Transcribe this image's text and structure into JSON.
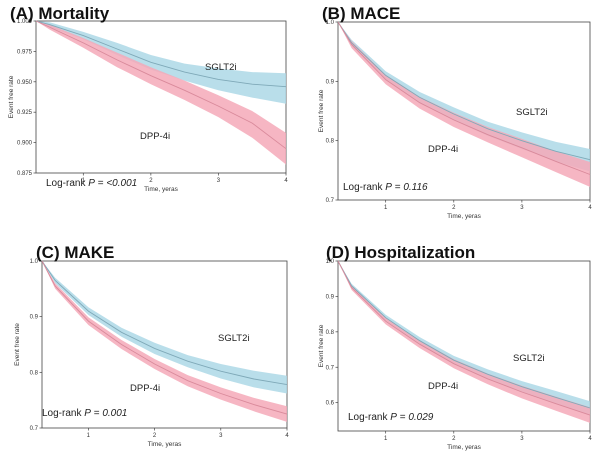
{
  "chart_data": [
    {
      "type": "line",
      "title": "(A) Mortality",
      "xlabel": "Time, yeras",
      "ylabel": "Event free rate",
      "xlim": [
        0.3,
        4.0
      ],
      "ylim": [
        0.875,
        1.0
      ],
      "xticks": [
        "1",
        "2",
        "3",
        "4"
      ],
      "yticks": [
        "0.875",
        "0.900",
        "0.925",
        "0.950",
        "0.975",
        "1.000"
      ],
      "pvalue_prefix": "Log-rank ",
      "pvalue_p": "P",
      "pvalue_rest": " = ",
      "pvalue_value": "<0.001",
      "legend": "none",
      "grid": false,
      "series": [
        {
          "name": "SGLT2i",
          "color": "#add8e6",
          "x": [
            0.3,
            0.5,
            1.0,
            1.5,
            2.0,
            2.5,
            3.0,
            3.5,
            4.0
          ],
          "y": [
            1.0,
            0.997,
            0.988,
            0.977,
            0.966,
            0.958,
            0.952,
            0.948,
            0.946
          ],
          "lower": [
            1.0,
            0.995,
            0.985,
            0.972,
            0.96,
            0.951,
            0.943,
            0.937,
            0.932
          ],
          "upper": [
            1.0,
            0.999,
            0.991,
            0.982,
            0.972,
            0.965,
            0.961,
            0.958,
            0.957
          ]
        },
        {
          "name": "DPP-4i",
          "color": "#f4a9b8",
          "x": [
            0.3,
            0.5,
            1.0,
            1.5,
            2.0,
            2.5,
            3.0,
            3.5,
            4.0
          ],
          "y": [
            1.0,
            0.995,
            0.982,
            0.968,
            0.955,
            0.943,
            0.93,
            0.916,
            0.895
          ],
          "lower": [
            1.0,
            0.993,
            0.978,
            0.962,
            0.948,
            0.935,
            0.921,
            0.904,
            0.882
          ],
          "upper": [
            1.0,
            0.997,
            0.986,
            0.974,
            0.962,
            0.951,
            0.939,
            0.926,
            0.908
          ]
        }
      ]
    },
    {
      "type": "line",
      "title": "(B) MACE",
      "xlabel": "Time, yeras",
      "ylabel": "Event free rate",
      "xlim": [
        0.3,
        4.0
      ],
      "ylim": [
        0.7,
        1.0
      ],
      "xticks": [
        "1",
        "2",
        "3",
        "4"
      ],
      "yticks": [
        "0.7",
        "0.8",
        "0.9",
        "1.0"
      ],
      "pvalue_prefix": "Log-rank ",
      "pvalue_p": "P",
      "pvalue_rest": " = ",
      "pvalue_value": "0.116",
      "legend": "none",
      "grid": false,
      "series": [
        {
          "name": "SGLT2i",
          "color": "#add8e6",
          "x": [
            0.3,
            0.5,
            1.0,
            1.5,
            2.0,
            2.5,
            3.0,
            3.5,
            4.0
          ],
          "y": [
            1.0,
            0.965,
            0.91,
            0.873,
            0.845,
            0.82,
            0.8,
            0.782,
            0.768
          ],
          "lower": [
            1.0,
            0.96,
            0.903,
            0.864,
            0.834,
            0.808,
            0.786,
            0.765,
            0.748
          ],
          "upper": [
            1.0,
            0.97,
            0.917,
            0.882,
            0.856,
            0.832,
            0.814,
            0.798,
            0.786
          ]
        },
        {
          "name": "DPP-4i",
          "color": "#f4a9b8",
          "x": [
            0.3,
            0.5,
            1.0,
            1.5,
            2.0,
            2.5,
            3.0,
            3.5,
            4.0
          ],
          "y": [
            1.0,
            0.962,
            0.903,
            0.864,
            0.835,
            0.81,
            0.788,
            0.765,
            0.743
          ],
          "lower": [
            1.0,
            0.956,
            0.895,
            0.854,
            0.823,
            0.797,
            0.772,
            0.747,
            0.722
          ],
          "upper": [
            1.0,
            0.968,
            0.911,
            0.874,
            0.847,
            0.823,
            0.803,
            0.782,
            0.764
          ]
        }
      ]
    },
    {
      "type": "line",
      "title": "(C) MAKE",
      "xlabel": "Time, yeras",
      "ylabel": "Event free rate",
      "xlim": [
        0.3,
        4.0
      ],
      "ylim": [
        0.7,
        1.0
      ],
      "xticks": [
        "1",
        "2",
        "3",
        "4"
      ],
      "yticks": [
        "0.7",
        "0.8",
        "0.9",
        "1.0"
      ],
      "pvalue_prefix": "Log-rank ",
      "pvalue_p": "P",
      "pvalue_rest": " = ",
      "pvalue_value": "0.001",
      "legend": "none",
      "grid": false,
      "series": [
        {
          "name": "SGLT2i",
          "color": "#add8e6",
          "x": [
            0.3,
            0.5,
            1.0,
            1.5,
            2.0,
            2.5,
            3.0,
            3.5,
            4.0
          ],
          "y": [
            1.0,
            0.965,
            0.91,
            0.872,
            0.843,
            0.82,
            0.802,
            0.788,
            0.778
          ],
          "lower": [
            1.0,
            0.96,
            0.903,
            0.864,
            0.833,
            0.809,
            0.789,
            0.773,
            0.762
          ],
          "upper": [
            1.0,
            0.97,
            0.917,
            0.88,
            0.853,
            0.831,
            0.815,
            0.803,
            0.794
          ]
        },
        {
          "name": "DPP-4i",
          "color": "#f4a9b8",
          "x": [
            0.3,
            0.5,
            1.0,
            1.5,
            2.0,
            2.5,
            3.0,
            3.5,
            4.0
          ],
          "y": [
            1.0,
            0.955,
            0.892,
            0.85,
            0.815,
            0.785,
            0.762,
            0.742,
            0.725
          ],
          "lower": [
            1.0,
            0.95,
            0.885,
            0.842,
            0.806,
            0.775,
            0.751,
            0.73,
            0.711
          ],
          "upper": [
            1.0,
            0.96,
            0.899,
            0.858,
            0.824,
            0.795,
            0.773,
            0.754,
            0.739
          ]
        }
      ]
    },
    {
      "type": "line",
      "title": "(D) Hospitalization",
      "xlabel": "Time, yeras",
      "ylabel": "Event free rate",
      "xlim": [
        0.3,
        4.0
      ],
      "ylim": [
        0.52,
        1.0
      ],
      "xticks": [
        "1",
        "2",
        "3",
        "4"
      ],
      "yticks": [
        "0.6",
        "0.7",
        "0.8",
        "0.9",
        "1.0"
      ],
      "pvalue_prefix": "Log-rank ",
      "pvalue_p": "P",
      "pvalue_rest": " = ",
      "pvalue_value": "0.029",
      "legend": "none",
      "grid": false,
      "series": [
        {
          "name": "SGLT2i",
          "color": "#add8e6",
          "x": [
            0.3,
            0.5,
            1.0,
            1.5,
            2.0,
            2.5,
            3.0,
            3.5,
            4.0
          ],
          "y": [
            1.0,
            0.93,
            0.84,
            0.775,
            0.72,
            0.68,
            0.645,
            0.615,
            0.585
          ],
          "lower": [
            1.0,
            0.924,
            0.832,
            0.765,
            0.708,
            0.666,
            0.629,
            0.597,
            0.566
          ],
          "upper": [
            1.0,
            0.936,
            0.848,
            0.785,
            0.732,
            0.694,
            0.661,
            0.633,
            0.604
          ]
        },
        {
          "name": "DPP-4i",
          "color": "#f4a9b8",
          "x": [
            0.3,
            0.5,
            1.0,
            1.5,
            2.0,
            2.5,
            3.0,
            3.5,
            4.0
          ],
          "y": [
            1.0,
            0.925,
            0.83,
            0.765,
            0.71,
            0.667,
            0.63,
            0.597,
            0.565
          ],
          "lower": [
            1.0,
            0.918,
            0.821,
            0.754,
            0.697,
            0.652,
            0.612,
            0.577,
            0.543
          ],
          "upper": [
            1.0,
            0.932,
            0.839,
            0.776,
            0.723,
            0.682,
            0.648,
            0.617,
            0.587
          ]
        }
      ]
    }
  ]
}
